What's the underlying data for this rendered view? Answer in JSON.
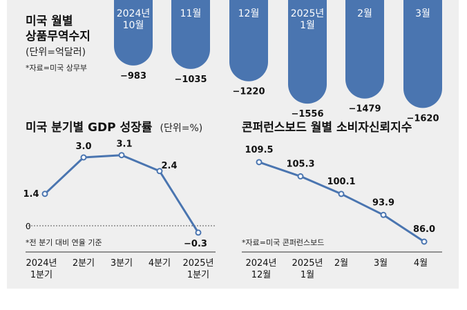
{
  "chart_data": [
    {
      "type": "bar",
      "title": "미국 월별 상품무역수지",
      "unit": "(단위=억달러)",
      "source": "*자료=미국 상무부",
      "categories": [
        "2024년 10월",
        "11월",
        "12월",
        "2025년 1월",
        "2월",
        "3월"
      ],
      "values": [
        -983,
        -1035,
        -1220,
        -1556,
        -1479,
        -1620
      ],
      "value_labels": [
        "−983",
        "−1035",
        "−1220",
        "−1556",
        "−1479",
        "−1620"
      ],
      "colors": {
        "bar": "#4a75b0"
      }
    },
    {
      "type": "line",
      "title": "미국 분기별 GDP 성장률",
      "unit": "(단위=%)",
      "note": "*전 분기 대비 연율 기준",
      "categories": [
        "2024년 1분기",
        "2분기",
        "3분기",
        "4분기",
        "2025년 1분기"
      ],
      "values": [
        1.4,
        3.0,
        3.1,
        2.4,
        -0.3
      ],
      "value_labels": [
        "1.4",
        "3.0",
        "3.1",
        "2.4",
        "−0.3"
      ],
      "zero_label": "0",
      "colors": {
        "line": "#4a75b0"
      }
    },
    {
      "type": "line",
      "title": "콘퍼런스보드 월별 소비자신뢰지수",
      "source": "*자료=미국 콘퍼런스보드",
      "categories": [
        "2024년 12월",
        "2025년 1월",
        "2월",
        "3월",
        "4월"
      ],
      "values": [
        109.5,
        105.3,
        100.1,
        93.9,
        86.0
      ],
      "value_labels": [
        "109.5",
        "105.3",
        "100.1",
        "93.9",
        "86.0"
      ],
      "colors": {
        "line": "#4a75b0"
      }
    }
  ]
}
